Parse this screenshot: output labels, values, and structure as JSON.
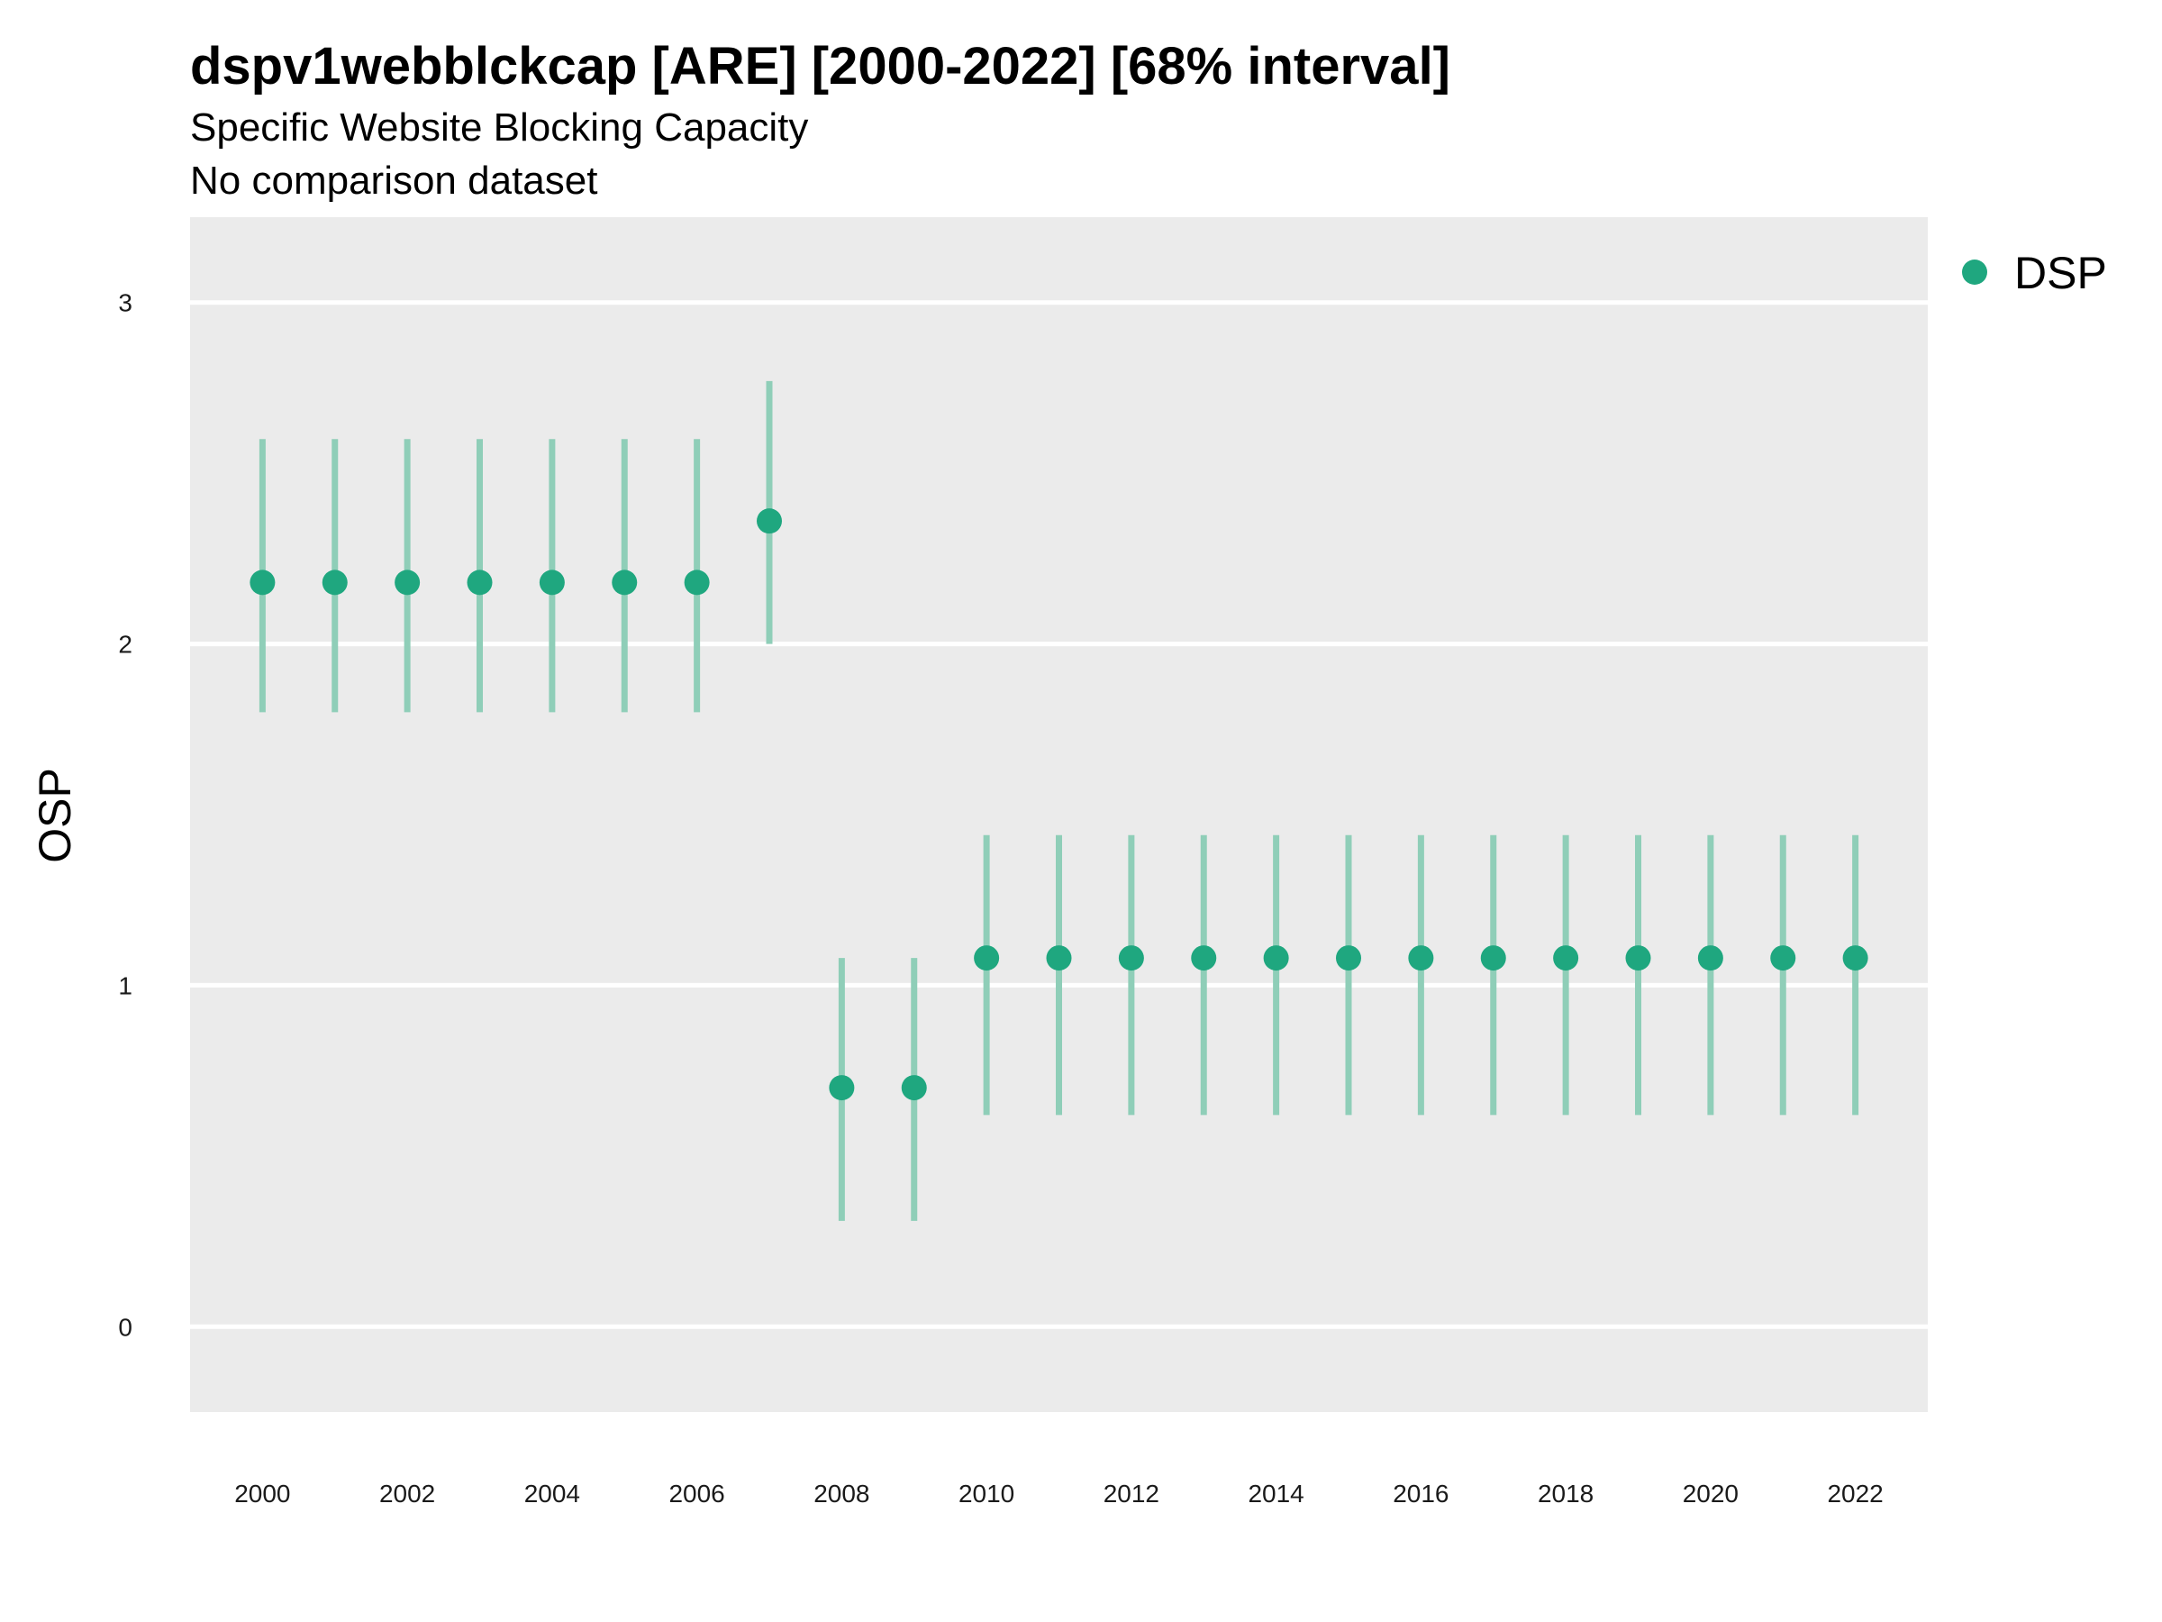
{
  "chart_data": {
    "type": "scatter",
    "title": "dspv1webblckcap [ARE] [2000-2022] [68% interval]",
    "subtitle": "Specific Website Blocking Capacity",
    "caption": "No comparison dataset",
    "xlabel": "",
    "ylabel": "OSP",
    "ylim": [
      -0.25,
      3.25
    ],
    "y_ticks": [
      0,
      1,
      2,
      3
    ],
    "x_ticks": [
      2000,
      2002,
      2004,
      2006,
      2008,
      2010,
      2012,
      2014,
      2016,
      2018,
      2020,
      2022
    ],
    "xlim": [
      1999,
      2023
    ],
    "grid": true,
    "legend_position": "top-right",
    "series": [
      {
        "name": "DSP",
        "color": "#1fa77f",
        "points": [
          {
            "x": 2000,
            "y": 2.18,
            "lower": 1.8,
            "upper": 2.6
          },
          {
            "x": 2001,
            "y": 2.18,
            "lower": 1.8,
            "upper": 2.6
          },
          {
            "x": 2002,
            "y": 2.18,
            "lower": 1.8,
            "upper": 2.6
          },
          {
            "x": 2003,
            "y": 2.18,
            "lower": 1.8,
            "upper": 2.6
          },
          {
            "x": 2004,
            "y": 2.18,
            "lower": 1.8,
            "upper": 2.6
          },
          {
            "x": 2005,
            "y": 2.18,
            "lower": 1.8,
            "upper": 2.6
          },
          {
            "x": 2006,
            "y": 2.18,
            "lower": 1.8,
            "upper": 2.6
          },
          {
            "x": 2007,
            "y": 2.36,
            "lower": 2.0,
            "upper": 2.77
          },
          {
            "x": 2008,
            "y": 0.7,
            "lower": 0.31,
            "upper": 1.08
          },
          {
            "x": 2009,
            "y": 0.7,
            "lower": 0.31,
            "upper": 1.08
          },
          {
            "x": 2010,
            "y": 1.08,
            "lower": 0.62,
            "upper": 1.44
          },
          {
            "x": 2011,
            "y": 1.08,
            "lower": 0.62,
            "upper": 1.44
          },
          {
            "x": 2012,
            "y": 1.08,
            "lower": 0.62,
            "upper": 1.44
          },
          {
            "x": 2013,
            "y": 1.08,
            "lower": 0.62,
            "upper": 1.44
          },
          {
            "x": 2014,
            "y": 1.08,
            "lower": 0.62,
            "upper": 1.44
          },
          {
            "x": 2015,
            "y": 1.08,
            "lower": 0.62,
            "upper": 1.44
          },
          {
            "x": 2016,
            "y": 1.08,
            "lower": 0.62,
            "upper": 1.44
          },
          {
            "x": 2017,
            "y": 1.08,
            "lower": 0.62,
            "upper": 1.44
          },
          {
            "x": 2018,
            "y": 1.08,
            "lower": 0.62,
            "upper": 1.44
          },
          {
            "x": 2019,
            "y": 1.08,
            "lower": 0.62,
            "upper": 1.44
          },
          {
            "x": 2020,
            "y": 1.08,
            "lower": 0.62,
            "upper": 1.44
          },
          {
            "x": 2021,
            "y": 1.08,
            "lower": 0.62,
            "upper": 1.44
          },
          {
            "x": 2022,
            "y": 1.08,
            "lower": 0.62,
            "upper": 1.44
          }
        ]
      }
    ],
    "colors": {
      "panel_background": "#ebebeb",
      "gridline": "#ffffff",
      "interval": "#8fceb8"
    }
  }
}
